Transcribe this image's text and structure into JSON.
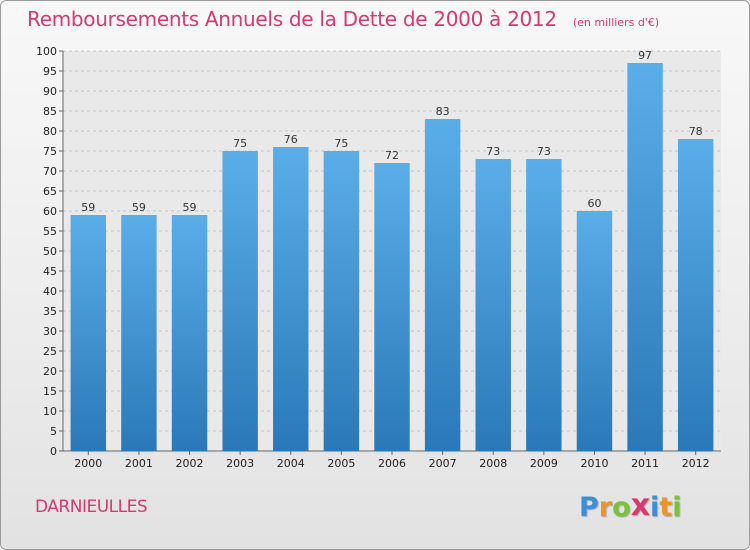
{
  "title": "Remboursements Annuels de la Dette de 2000 à 2012",
  "subtitle": "(en milliers d'€)",
  "commune": "DARNIEULLES",
  "logo": {
    "letters": [
      "P",
      "r",
      "o",
      "x",
      "i",
      "t",
      "i"
    ],
    "colors": [
      "#3a8fd8",
      "#e8962a",
      "#7cc13a",
      "#d63a6e",
      "#3a8fd8",
      "#e8962a",
      "#7cc13a"
    ]
  },
  "colors": {
    "bar_top": "#5aaee8",
    "bar_bottom": "#2a78b8",
    "accent": "#d63a6e"
  },
  "chart_data": {
    "type": "bar",
    "categories": [
      "2000",
      "2001",
      "2002",
      "2003",
      "2004",
      "2005",
      "2006",
      "2007",
      "2008",
      "2009",
      "2010",
      "2011",
      "2012"
    ],
    "values": [
      59,
      59,
      59,
      75,
      76,
      75,
      72,
      83,
      73,
      73,
      60,
      97,
      78
    ],
    "ylim": [
      0,
      100
    ],
    "ytick_step": 5,
    "grid": true
  }
}
